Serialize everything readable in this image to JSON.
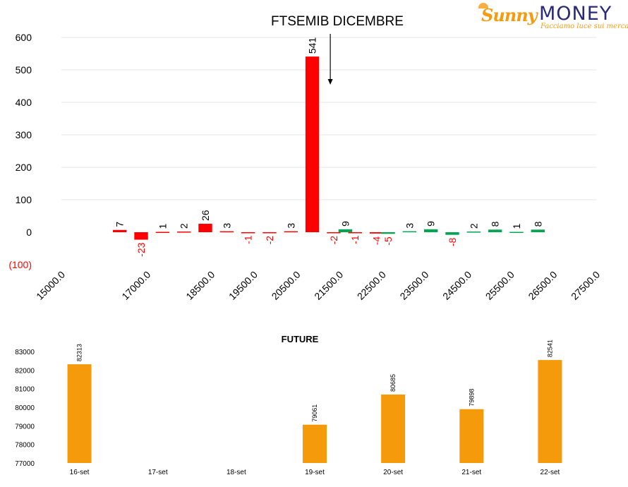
{
  "logo": {
    "sunny": "Sunny",
    "money": "MONEY",
    "tagline": "Facciamo luce sui mercati"
  },
  "colors": {
    "positive": "#00a651",
    "negative": "#ff0000",
    "future_bar": "#f59b0b",
    "grid": "#e6e6e6"
  },
  "chart_data": [
    {
      "type": "bar",
      "title": "FTSEMIB DICEMBRE",
      "ylim": [
        -100,
        600
      ],
      "yticks": [
        {
          "v": 600,
          "label": "600",
          "color": "#000000"
        },
        {
          "v": 500,
          "label": "500",
          "color": "#000000"
        },
        {
          "v": 400,
          "label": "400",
          "color": "#000000"
        },
        {
          "v": 300,
          "label": "300",
          "color": "#000000"
        },
        {
          "v": 200,
          "label": "200",
          "color": "#000000"
        },
        {
          "v": 100,
          "label": "100",
          "color": "#000000"
        },
        {
          "v": 0,
          "label": "0",
          "color": "#000000"
        },
        {
          "v": -100,
          "label": "(100)",
          "color": "#ff0000"
        }
      ],
      "xlim": [
        15000,
        27500
      ],
      "xticks": [
        {
          "v": 15000,
          "label": "15000.0"
        },
        {
          "v": 17000,
          "label": "17000.0"
        },
        {
          "v": 18500,
          "label": "18500.0"
        },
        {
          "v": 19500,
          "label": "19500.0"
        },
        {
          "v": 20500,
          "label": "20500.0"
        },
        {
          "v": 21500,
          "label": "21500.0"
        },
        {
          "v": 22500,
          "label": "22500.0"
        },
        {
          "v": 23500,
          "label": "23500.0"
        },
        {
          "v": 24500,
          "label": "24500.0"
        },
        {
          "v": 25500,
          "label": "25500.0"
        },
        {
          "v": 26500,
          "label": "26500.0"
        },
        {
          "v": 27500,
          "label": "27500.0"
        }
      ],
      "series": [
        {
          "color": "#ff0000",
          "points": [
            {
              "x": 16500,
              "y": 7
            },
            {
              "x": 17000,
              "y": -23
            },
            {
              "x": 17500,
              "y": 1
            },
            {
              "x": 18000,
              "y": 2
            },
            {
              "x": 18500,
              "y": 26
            },
            {
              "x": 19000,
              "y": 3
            },
            {
              "x": 19500,
              "y": -1
            },
            {
              "x": 20000,
              "y": -2
            },
            {
              "x": 20500,
              "y": 3
            },
            {
              "x": 21000,
              "y": 541
            },
            {
              "x": 21500,
              "y": -2
            },
            {
              "x": 22000,
              "y": -1
            },
            {
              "x": 22500,
              "y": -4
            }
          ]
        },
        {
          "color": "#00a651",
          "points": [
            {
              "x": 21500,
              "y": 9
            },
            {
              "x": 22500,
              "y": -5
            },
            {
              "x": 23000,
              "y": 3
            },
            {
              "x": 23500,
              "y": 9
            },
            {
              "x": 24000,
              "y": -8
            },
            {
              "x": 24500,
              "y": 2
            },
            {
              "x": 25000,
              "y": 8
            },
            {
              "x": 25500,
              "y": 1
            },
            {
              "x": 26000,
              "y": 8
            }
          ]
        }
      ],
      "annotation": {
        "text": "",
        "arrow_at_x": 21000
      }
    },
    {
      "type": "bar",
      "title": "FUTURE",
      "categories": [
        "16-set",
        "17-set",
        "18-set",
        "19-set",
        "20-set",
        "21-set",
        "22-set"
      ],
      "values": [
        82313,
        null,
        null,
        79061,
        80685,
        79898,
        82541
      ],
      "ylim": [
        77000,
        83000
      ],
      "yticks": [
        77000,
        78000,
        79000,
        80000,
        81000,
        82000,
        83000
      ]
    }
  ]
}
